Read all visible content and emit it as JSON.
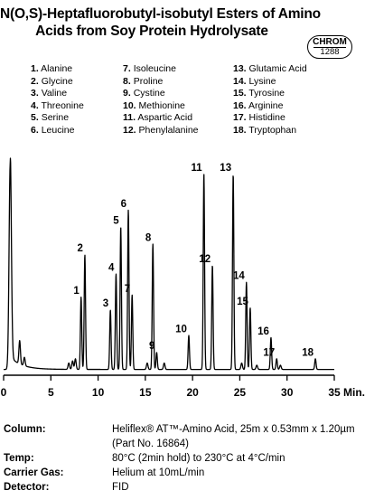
{
  "title": {
    "line1": "N(O,S)-Heptafluorobutyl-isobutyl Esters of Amino",
    "line2": "Acids from Soy Protein Hydrolysate"
  },
  "badge": {
    "top": "CHROM",
    "bottom": "1288"
  },
  "legend": [
    [
      {
        "num": "1.",
        "name": "Alanine"
      },
      {
        "num": "2.",
        "name": "Glycine"
      },
      {
        "num": "3.",
        "name": "Valine"
      },
      {
        "num": "4.",
        "name": "Threonine"
      },
      {
        "num": "5.",
        "name": "Serine"
      },
      {
        "num": "6.",
        "name": "Leucine"
      }
    ],
    [
      {
        "num": "7.",
        "name": "Isoleucine"
      },
      {
        "num": "8.",
        "name": "Proline"
      },
      {
        "num": "9.",
        "name": "Cystine"
      },
      {
        "num": "10.",
        "name": "Methionine"
      },
      {
        "num": "11.",
        "name": "Aspartic Acid"
      },
      {
        "num": "12.",
        "name": "Phenylalanine"
      }
    ],
    [
      {
        "num": "13.",
        "name": "Glutamic Acid"
      },
      {
        "num": "14.",
        "name": "Lysine"
      },
      {
        "num": "15.",
        "name": "Tyrosine"
      },
      {
        "num": "16.",
        "name": "Arginine"
      },
      {
        "num": "17.",
        "name": "Histidine"
      },
      {
        "num": "18.",
        "name": "Tryptophan"
      }
    ]
  ],
  "chart_data": {
    "type": "line",
    "x_unit": "Min.",
    "xlim": [
      0,
      35
    ],
    "ylim": [
      0,
      100
    ],
    "x_ticks": [
      "0",
      "5",
      "10",
      "15",
      "20",
      "25",
      "30",
      "35"
    ],
    "tick_values": [
      0,
      5,
      10,
      15,
      20,
      25,
      30,
      35
    ],
    "solvent_peak": {
      "x": 0.7,
      "y": 97
    },
    "minor_peaks": [
      {
        "x": 1.7,
        "y": 11
      },
      {
        "x": 2.2,
        "y": 4
      },
      {
        "x": 6.9,
        "y": 3
      },
      {
        "x": 7.3,
        "y": 4
      },
      {
        "x": 7.6,
        "y": 5
      },
      {
        "x": 15.2,
        "y": 3
      },
      {
        "x": 17.0,
        "y": 3
      },
      {
        "x": 25.2,
        "y": 3
      },
      {
        "x": 26.8,
        "y": 2
      },
      {
        "x": 29.3,
        "y": 2
      }
    ],
    "peaks": [
      {
        "label": "1",
        "x": 8.2,
        "y": 34
      },
      {
        "label": "2",
        "x": 8.6,
        "y": 54
      },
      {
        "label": "3",
        "x": 11.3,
        "y": 28
      },
      {
        "label": "4",
        "x": 11.9,
        "y": 45
      },
      {
        "label": "5",
        "x": 12.4,
        "y": 67
      },
      {
        "label": "6",
        "x": 13.2,
        "y": 75
      },
      {
        "label": "7",
        "x": 13.6,
        "y": 35
      },
      {
        "label": "8",
        "x": 15.8,
        "y": 59
      },
      {
        "label": "9",
        "x": 16.2,
        "y": 8
      },
      {
        "label": "10",
        "x": 19.6,
        "y": 16
      },
      {
        "label": "11",
        "x": 21.2,
        "y": 92
      },
      {
        "label": "12",
        "x": 22.1,
        "y": 49
      },
      {
        "label": "13",
        "x": 24.3,
        "y": 92
      },
      {
        "label": "14",
        "x": 25.7,
        "y": 41
      },
      {
        "label": "15",
        "x": 26.1,
        "y": 29
      },
      {
        "label": "16",
        "x": 28.3,
        "y": 15
      },
      {
        "label": "17",
        "x": 28.9,
        "y": 5
      },
      {
        "label": "18",
        "x": 33.0,
        "y": 5
      }
    ]
  },
  "specs": [
    {
      "label": "Column:",
      "lines": [
        "Heliflex® AT™-Amino Acid, 25m x 0.53mm x 1.20µm",
        "(Part No. 16864)"
      ]
    },
    {
      "label": "Temp:",
      "lines": [
        "80°C (2min hold) to 230°C at 4°C/min"
      ]
    },
    {
      "label": "Carrier Gas:",
      "lines": [
        "Helium at 10mL/min"
      ]
    },
    {
      "label": "Detector:",
      "lines": [
        "FID"
      ]
    }
  ]
}
